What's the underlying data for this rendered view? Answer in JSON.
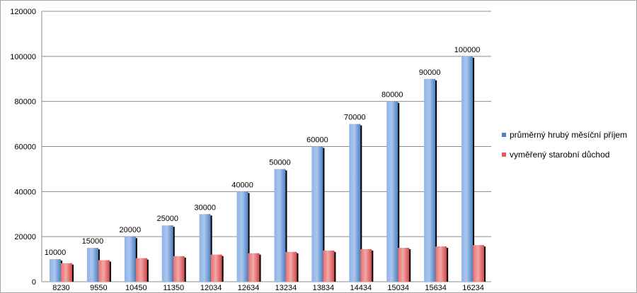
{
  "chart_data": {
    "type": "bar",
    "categories": [
      "8230",
      "9550",
      "10450",
      "11350",
      "12034",
      "12634",
      "13234",
      "13834",
      "14434",
      "15034",
      "15634",
      "16234"
    ],
    "series": [
      {
        "name": "průměrný hrubý měsíční příjem",
        "values": [
          10000,
          15000,
          20000,
          25000,
          30000,
          40000,
          50000,
          60000,
          70000,
          80000,
          90000,
          100000
        ],
        "color": "#4f81bd"
      },
      {
        "name": "vyměřený starobní důchod",
        "values": [
          8230,
          9550,
          10450,
          11350,
          12034,
          12634,
          13234,
          13834,
          14434,
          15034,
          15634,
          16234
        ],
        "color": "#e05a5a"
      }
    ],
    "data_labels_series": 0,
    "ylim": [
      0,
      120000
    ],
    "yticks": [
      0,
      20000,
      40000,
      60000,
      80000,
      100000,
      120000
    ],
    "grid": true,
    "legend": "right"
  }
}
